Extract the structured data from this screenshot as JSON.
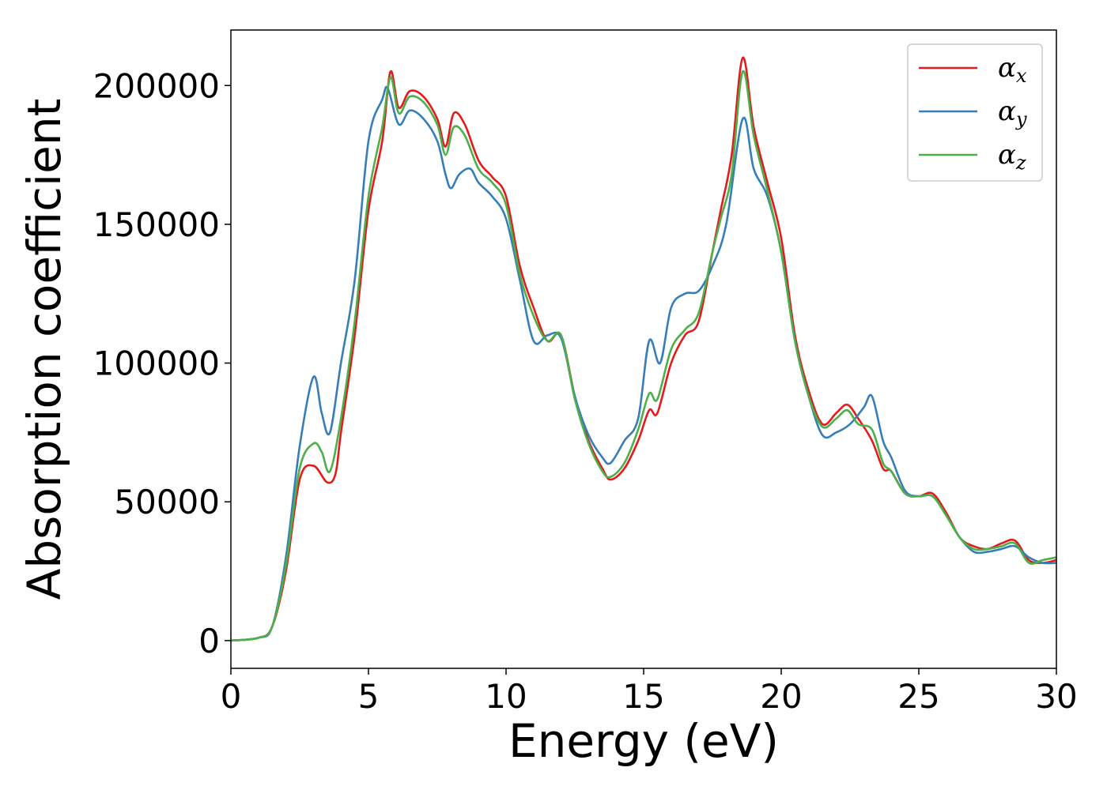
{
  "chart_data": {
    "type": "line",
    "xlabel": "Energy (eV)",
    "ylabel": "Absorption coefficient",
    "xlim": [
      0,
      30
    ],
    "ylim": [
      -10000,
      220000
    ],
    "x_ticks": [
      "0",
      "5",
      "10",
      "15",
      "20",
      "25",
      "30"
    ],
    "x_tick_values": [
      0,
      5,
      10,
      15,
      20,
      25,
      30
    ],
    "y_ticks": [
      "0",
      "50000",
      "100000",
      "150000",
      "200000"
    ],
    "y_tick_values": [
      0,
      50000,
      100000,
      150000,
      200000
    ],
    "grid": false,
    "legend_position": "top-right",
    "series": [
      {
        "name": "αx",
        "symbol": "α",
        "subscript": "x",
        "color": "#e41a1c",
        "points": [
          [
            0,
            0
          ],
          [
            1,
            1000
          ],
          [
            1.5,
            5000
          ],
          [
            2,
            25000
          ],
          [
            2.5,
            58000
          ],
          [
            3,
            63000
          ],
          [
            3.5,
            57000
          ],
          [
            3.8,
            60000
          ],
          [
            4,
            75000
          ],
          [
            4.5,
            110000
          ],
          [
            5,
            155000
          ],
          [
            5.5,
            180000
          ],
          [
            5.8,
            205000
          ],
          [
            6.1,
            192000
          ],
          [
            6.5,
            198000
          ],
          [
            7,
            196000
          ],
          [
            7.5,
            188000
          ],
          [
            7.8,
            178000
          ],
          [
            8.1,
            190000
          ],
          [
            8.5,
            186000
          ],
          [
            9,
            173000
          ],
          [
            9.5,
            167000
          ],
          [
            10,
            160000
          ],
          [
            10.5,
            135000
          ],
          [
            11,
            120000
          ],
          [
            11.5,
            108000
          ],
          [
            12,
            110000
          ],
          [
            12.5,
            88000
          ],
          [
            13,
            72000
          ],
          [
            13.5,
            62000
          ],
          [
            13.8,
            58000
          ],
          [
            14.3,
            62000
          ],
          [
            14.8,
            72000
          ],
          [
            15.2,
            83000
          ],
          [
            15.5,
            82000
          ],
          [
            16,
            100000
          ],
          [
            16.5,
            110000
          ],
          [
            17,
            115000
          ],
          [
            17.5,
            140000
          ],
          [
            17.8,
            155000
          ],
          [
            18.2,
            175000
          ],
          [
            18.6,
            210000
          ],
          [
            19,
            185000
          ],
          [
            19.5,
            165000
          ],
          [
            20,
            145000
          ],
          [
            20.5,
            110000
          ],
          [
            21,
            90000
          ],
          [
            21.5,
            78000
          ],
          [
            22,
            82000
          ],
          [
            22.4,
            85000
          ],
          [
            22.8,
            80000
          ],
          [
            23.3,
            72000
          ],
          [
            23.7,
            62000
          ],
          [
            24,
            61000
          ],
          [
            24.5,
            53000
          ],
          [
            25,
            52000
          ],
          [
            25.5,
            53000
          ],
          [
            26,
            46000
          ],
          [
            26.5,
            37000
          ],
          [
            27,
            34000
          ],
          [
            27.5,
            33000
          ],
          [
            28,
            35000
          ],
          [
            28.5,
            36000
          ],
          [
            29,
            29000
          ],
          [
            29.5,
            28000
          ],
          [
            30,
            29000
          ]
        ]
      },
      {
        "name": "αy",
        "symbol": "α",
        "subscript": "y",
        "color": "#377eb8",
        "points": [
          [
            0,
            0
          ],
          [
            1,
            1000
          ],
          [
            1.5,
            5000
          ],
          [
            2,
            30000
          ],
          [
            2.5,
            70000
          ],
          [
            3,
            95000
          ],
          [
            3.3,
            82000
          ],
          [
            3.6,
            75000
          ],
          [
            4,
            100000
          ],
          [
            4.5,
            130000
          ],
          [
            5,
            180000
          ],
          [
            5.5,
            195000
          ],
          [
            5.7,
            199000
          ],
          [
            6.1,
            186000
          ],
          [
            6.5,
            191000
          ],
          [
            7,
            188000
          ],
          [
            7.5,
            180000
          ],
          [
            7.8,
            168000
          ],
          [
            8,
            163000
          ],
          [
            8.3,
            168000
          ],
          [
            8.7,
            170000
          ],
          [
            9,
            165000
          ],
          [
            9.5,
            160000
          ],
          [
            10,
            152000
          ],
          [
            10.5,
            130000
          ],
          [
            11,
            108000
          ],
          [
            11.5,
            110000
          ],
          [
            12,
            109000
          ],
          [
            12.5,
            88000
          ],
          [
            13,
            74000
          ],
          [
            13.5,
            66000
          ],
          [
            13.8,
            64000
          ],
          [
            14.3,
            72000
          ],
          [
            14.8,
            80000
          ],
          [
            15.2,
            108000
          ],
          [
            15.6,
            100000
          ],
          [
            16,
            120000
          ],
          [
            16.5,
            125000
          ],
          [
            17,
            126000
          ],
          [
            17.5,
            135000
          ],
          [
            18,
            150000
          ],
          [
            18.6,
            188000
          ],
          [
            19,
            170000
          ],
          [
            19.5,
            160000
          ],
          [
            20,
            140000
          ],
          [
            20.5,
            108000
          ],
          [
            21,
            88000
          ],
          [
            21.5,
            74000
          ],
          [
            22,
            75000
          ],
          [
            22.5,
            78000
          ],
          [
            23,
            84000
          ],
          [
            23.3,
            88000
          ],
          [
            23.7,
            72000
          ],
          [
            24,
            66000
          ],
          [
            24.5,
            54000
          ],
          [
            25,
            52000
          ],
          [
            25.5,
            52000
          ],
          [
            26,
            45000
          ],
          [
            26.5,
            37000
          ],
          [
            27,
            32000
          ],
          [
            27.5,
            32000
          ],
          [
            28,
            33000
          ],
          [
            28.5,
            34000
          ],
          [
            29,
            30000
          ],
          [
            29.5,
            28000
          ],
          [
            30,
            28000
          ]
        ]
      },
      {
        "name": "αz",
        "symbol": "α",
        "subscript": "z",
        "color": "#4daf4a",
        "points": [
          [
            0,
            0
          ],
          [
            1,
            1000
          ],
          [
            1.5,
            5000
          ],
          [
            2,
            27000
          ],
          [
            2.5,
            62000
          ],
          [
            3,
            71000
          ],
          [
            3.3,
            68000
          ],
          [
            3.6,
            61000
          ],
          [
            4,
            80000
          ],
          [
            4.5,
            115000
          ],
          [
            5,
            160000
          ],
          [
            5.5,
            185000
          ],
          [
            5.8,
            203000
          ],
          [
            6.1,
            190000
          ],
          [
            6.5,
            196000
          ],
          [
            7,
            194000
          ],
          [
            7.5,
            186000
          ],
          [
            7.8,
            175000
          ],
          [
            8.1,
            185000
          ],
          [
            8.5,
            182000
          ],
          [
            9,
            170000
          ],
          [
            9.5,
            165000
          ],
          [
            10,
            157000
          ],
          [
            10.5,
            132000
          ],
          [
            11,
            117000
          ],
          [
            11.5,
            108000
          ],
          [
            12,
            110000
          ],
          [
            12.5,
            87000
          ],
          [
            13,
            71000
          ],
          [
            13.5,
            61000
          ],
          [
            13.8,
            59000
          ],
          [
            14.3,
            64000
          ],
          [
            14.8,
            76000
          ],
          [
            15.2,
            89000
          ],
          [
            15.5,
            87000
          ],
          [
            16,
            105000
          ],
          [
            16.5,
            112000
          ],
          [
            17,
            118000
          ],
          [
            17.5,
            140000
          ],
          [
            17.8,
            152000
          ],
          [
            18.2,
            168000
          ],
          [
            18.6,
            205000
          ],
          [
            19,
            182000
          ],
          [
            19.5,
            162000
          ],
          [
            20,
            140000
          ],
          [
            20.5,
            108000
          ],
          [
            21,
            88000
          ],
          [
            21.5,
            77000
          ],
          [
            22,
            80000
          ],
          [
            22.4,
            83000
          ],
          [
            22.8,
            78000
          ],
          [
            23.3,
            76000
          ],
          [
            23.7,
            64000
          ],
          [
            24,
            61000
          ],
          [
            24.5,
            53000
          ],
          [
            25,
            52000
          ],
          [
            25.5,
            52000
          ],
          [
            26,
            45000
          ],
          [
            26.5,
            37000
          ],
          [
            27,
            33000
          ],
          [
            27.5,
            33000
          ],
          [
            28,
            34000
          ],
          [
            28.5,
            35000
          ],
          [
            29,
            28000
          ],
          [
            29.5,
            29000
          ],
          [
            30,
            30000
          ]
        ]
      }
    ]
  }
}
